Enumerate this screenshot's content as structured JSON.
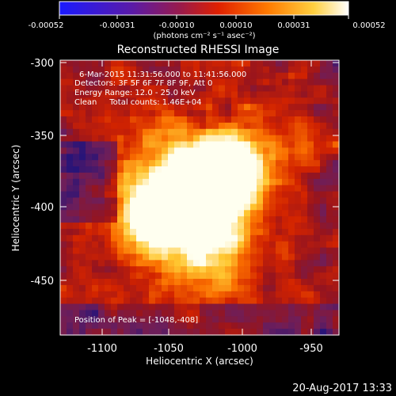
{
  "colorbar": {
    "tick_labels": [
      "-0.00052",
      "-0.00031",
      "-0.00010",
      "0.00010",
      "0.00031",
      "0.00052"
    ],
    "unit_label": "(photons cm⁻² s⁻¹ asec⁻²)",
    "colors": [
      "#1a1aff",
      "#5a1aa8",
      "#9a1a4a",
      "#e02000",
      "#ff7a00",
      "#ffd040",
      "#ffffff"
    ]
  },
  "image": {
    "title": "Reconstructed RHESSI Image",
    "info_lines": [
      "6-Mar-2015 11:31:56.000 to 11:41:56.000",
      "Detectors: 3F 5F 6F 7F 8F 9F, Att 0",
      "Energy Range: 12.0 - 25.0 keV",
      "Clean     Total counts: 1.46E+04"
    ],
    "peak_label": "Position of Peak = [-1048,-408]"
  },
  "axes": {
    "xlabel": "Heliocentric X (arcsec)",
    "ylabel": "Heliocentric Y (arcsec)",
    "x_ticks": [
      "-1100",
      "-1050",
      "-1000",
      "-950"
    ],
    "y_ticks": [
      "-300",
      "-350",
      "-400",
      "-450"
    ]
  },
  "footer": {
    "timestamp": "20-Aug-2017 13:33"
  }
}
